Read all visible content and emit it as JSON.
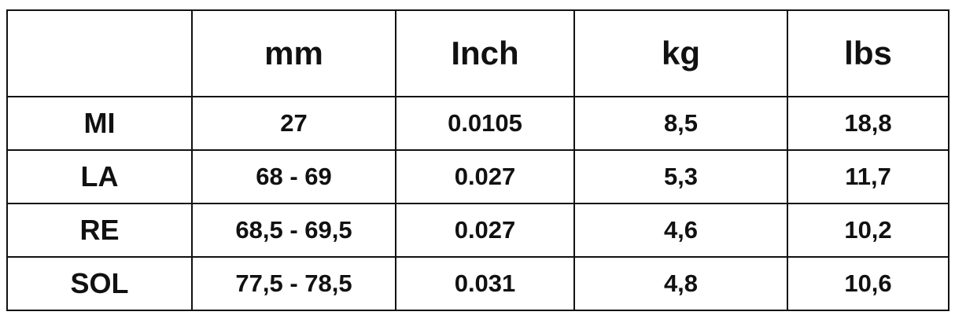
{
  "table": {
    "headers": [
      "",
      "mm",
      "Inch",
      "kg",
      "lbs"
    ],
    "rows": [
      {
        "label": "MI",
        "mm": "27",
        "inch": "0.0105",
        "kg": "8,5",
        "lbs": "18,8"
      },
      {
        "label": "LA",
        "mm": "68 - 69",
        "inch": "0.027",
        "kg": "5,3",
        "lbs": "11,7"
      },
      {
        "label": "RE",
        "mm": "68,5 - 69,5",
        "inch": "0.027",
        "kg": "4,6",
        "lbs": "10,2"
      },
      {
        "label": "SOL",
        "mm": "77,5 - 78,5",
        "inch": "0.031",
        "kg": "4,8",
        "lbs": "10,6"
      }
    ]
  }
}
